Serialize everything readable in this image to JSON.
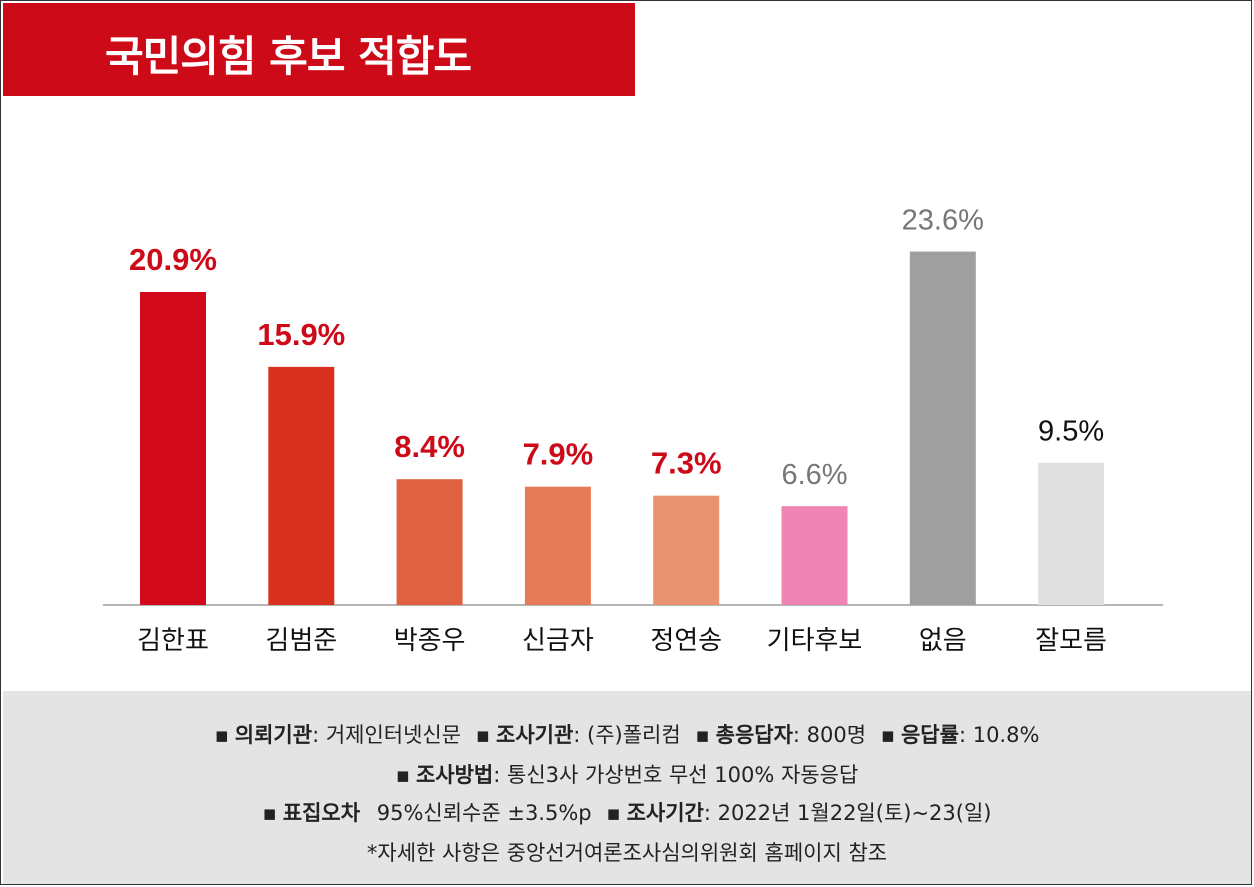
{
  "title": "국민의힘 후보 적합도",
  "colors": {
    "banner": "#cc0a18",
    "label_red": "#cc0a18",
    "label_gray": "#777777",
    "label_black": "#111111",
    "footer_bg": "#e4e4e4",
    "axis": "#b5b5b5"
  },
  "chart_data": {
    "type": "bar",
    "title": "국민의힘 후보 적합도",
    "xlabel": "",
    "ylabel": "",
    "ylim": [
      0,
      25
    ],
    "grid": false,
    "legend": "none",
    "categories": [
      "김한표",
      "김범준",
      "박종우",
      "신금자",
      "정연송",
      "기타후보",
      "없음",
      "잘모름"
    ],
    "values": [
      20.9,
      15.9,
      8.4,
      7.9,
      7.3,
      6.6,
      23.6,
      9.5
    ],
    "value_labels": [
      "20.9%",
      "15.9%",
      "8.4%",
      "7.9%",
      "7.3%",
      "6.6%",
      "23.6%",
      "9.5%"
    ],
    "bar_colors": [
      "#d2091a",
      "#d8321f",
      "#e0613f",
      "#e57c57",
      "#e99372",
      "#ee85b3",
      "#9f9f9f",
      "#e0e0e0"
    ],
    "label_colors": [
      "#cc0a18",
      "#cc0a18",
      "#cc0a18",
      "#cc0a18",
      "#cc0a18",
      "#777777",
      "#777777",
      "#111111"
    ]
  },
  "footer": {
    "bullet": "▪",
    "client_key": "의뢰기관",
    "client_val": ": 거제인터넷신문",
    "agency_key": "조사기관",
    "agency_val": ": (주)폴리컴",
    "respondents_key": "총응답자",
    "respondents_val": ": 800명",
    "response_rate_key": "응답률",
    "response_rate_val": ": 10.8%",
    "method_key": "조사방법",
    "method_val": ": 통신3사 가상번호 무선 100% 자동응답",
    "error_key": "표집오차",
    "error_val": "95%신뢰수준 ±3.5%p",
    "period_key": "조사기간",
    "period_val": ": 2022년 1월22일(토)~23(일)",
    "note": "*자세한 사항은 중앙선거여론조사심의위원회 홈페이지 참조"
  }
}
